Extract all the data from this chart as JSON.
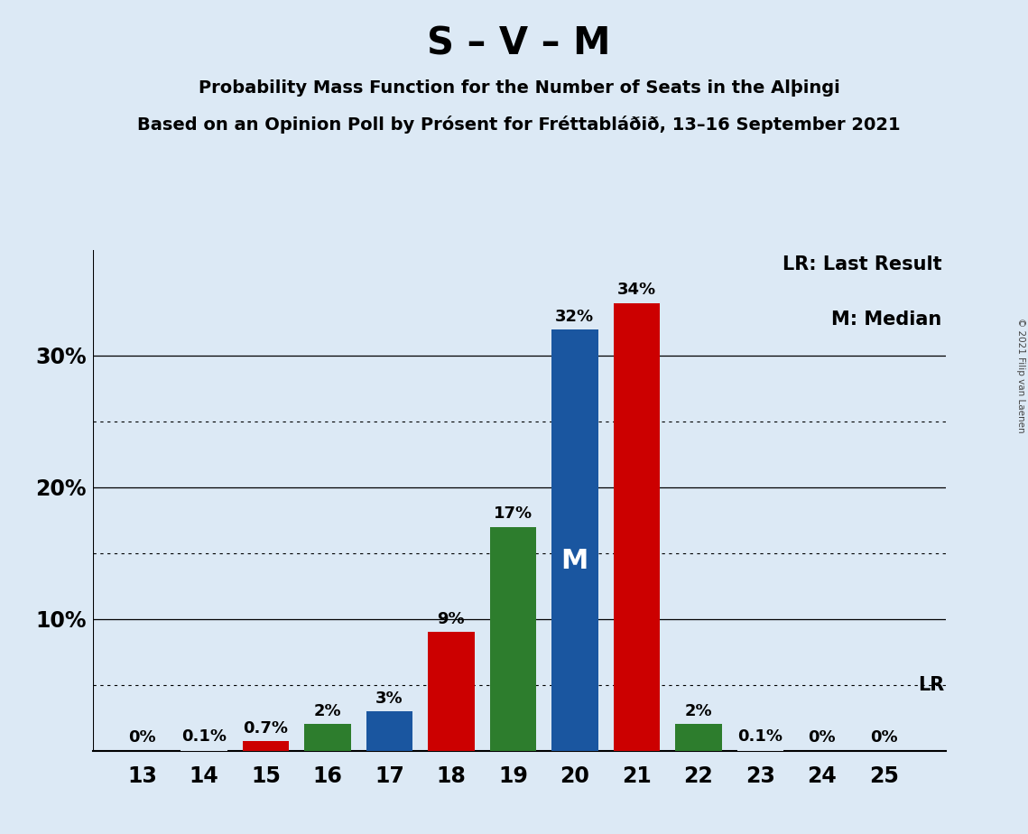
{
  "title": "S – V – M",
  "subtitle1": "Probability Mass Function for the Number of Seats in the Alþingi",
  "subtitle2": "Based on an Opinion Poll by Prósent for Fréttabláðið, 13–16 September 2021",
  "copyright": "© 2021 Filip van Laenen",
  "seats": [
    13,
    14,
    15,
    16,
    17,
    18,
    19,
    20,
    21,
    22,
    23,
    24,
    25
  ],
  "values": [
    0,
    0.1,
    0.7,
    2,
    3,
    9,
    17,
    32,
    34,
    2,
    0.1,
    0,
    0
  ],
  "labels": [
    "0%",
    "0.1%",
    "0.7%",
    "2%",
    "3%",
    "9%",
    "17%",
    "32%",
    "34%",
    "2%",
    "0.1%",
    "0%",
    "0%"
  ],
  "median_seat": 20,
  "lr_line_value": 5,
  "background_color": "#dce9f5",
  "bar_color_red": "#cc0000",
  "bar_color_green": "#2d7d2d",
  "bar_color_blue": "#1a56a0",
  "legend_lr": "LR: Last Result",
  "legend_m": "M: Median",
  "lr_label": "LR",
  "m_label": "M",
  "ylim_max": 38,
  "solid_hlines": [
    10,
    20,
    30
  ],
  "dotted_hlines": [
    5,
    15,
    25
  ],
  "ytick_positions": [
    10,
    20,
    30
  ],
  "ytick_labels": [
    "10%",
    "20%",
    "30%"
  ],
  "title_fontsize": 30,
  "subtitle_fontsize": 14,
  "label_fontsize": 13,
  "tick_fontsize": 17
}
